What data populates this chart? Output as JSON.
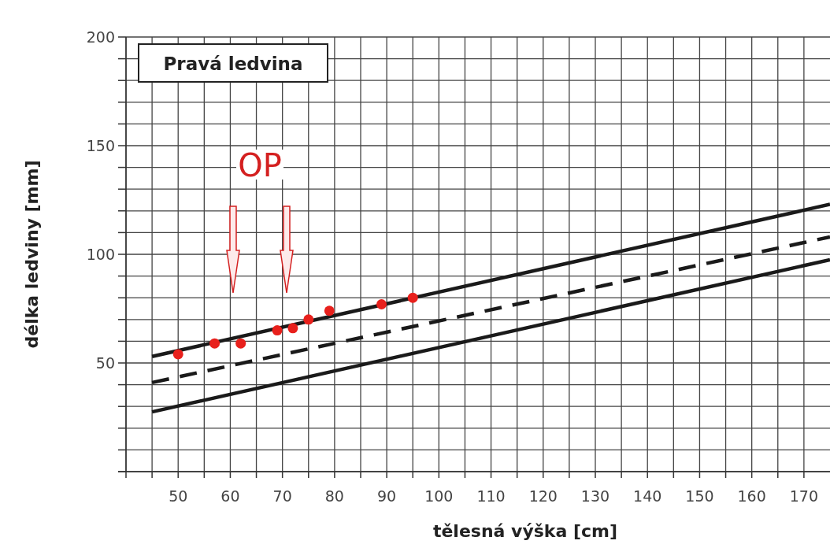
{
  "chart_data": {
    "type": "line",
    "title": "Pravá ledvina",
    "xlabel": "tělesná výška [cm]",
    "ylabel": "délka ledviny [mm]",
    "xlim": [
      40,
      175
    ],
    "ylim": [
      0,
      200
    ],
    "xticks": [
      {
        "value": 40,
        "label": null
      },
      {
        "value": 45,
        "label": null
      },
      50,
      {
        "value": 55,
        "label": null
      },
      60,
      {
        "value": 65,
        "label": null
      },
      70,
      {
        "value": 75,
        "label": null
      },
      80,
      {
        "value": 85,
        "label": null
      },
      90,
      {
        "value": 95,
        "label": null
      },
      100,
      {
        "value": 105,
        "label": null
      },
      110,
      {
        "value": 115,
        "label": null
      },
      120,
      {
        "value": 125,
        "label": null
      },
      130,
      {
        "value": 135,
        "label": null
      },
      140,
      {
        "value": 145,
        "label": null
      },
      150,
      {
        "value": 155,
        "label": null
      },
      160,
      {
        "value": 165,
        "label": null
      },
      170
    ],
    "yticks": [
      {
        "value": 0,
        "label": null
      },
      {
        "value": 10,
        "label": null
      },
      {
        "value": 20,
        "label": null
      },
      {
        "value": 30,
        "label": null
      },
      {
        "value": 40,
        "label": null
      },
      50,
      {
        "value": 60,
        "label": null
      },
      {
        "value": 70,
        "label": null
      },
      {
        "value": 80,
        "label": null
      },
      {
        "value": 90,
        "label": null
      },
      100,
      {
        "value": 110,
        "label": null
      },
      {
        "value": 120,
        "label": null
      },
      {
        "value": 130,
        "label": null
      },
      {
        "value": 140,
        "label": null
      },
      150,
      {
        "value": 160,
        "label": null
      },
      {
        "value": 170,
        "label": null
      },
      {
        "value": 180,
        "label": null
      },
      {
        "value": 190,
        "label": null
      },
      200
    ],
    "grid": true,
    "series": [
      {
        "color": "#1a1a1a",
        "line_style": "solid",
        "x": [
          45,
          175
        ],
        "values": [
          53,
          123
        ]
      },
      {
        "color": "#1a1a1a",
        "line_style": "dashed",
        "x": [
          45,
          175
        ],
        "values": [
          41,
          108
        ]
      },
      {
        "color": "#1a1a1a",
        "line_style": "solid",
        "x": [
          45,
          175
        ],
        "values": [
          27.5,
          97.5
        ]
      },
      {
        "type": "scatter",
        "color": "#e8201c",
        "marker": "circle",
        "x": [
          50,
          57,
          62,
          69,
          72,
          75,
          79,
          89,
          95
        ],
        "values": [
          54,
          59,
          59,
          65,
          66,
          70,
          74,
          77,
          80
        ]
      }
    ],
    "annotations": [
      "OP"
    ]
  }
}
